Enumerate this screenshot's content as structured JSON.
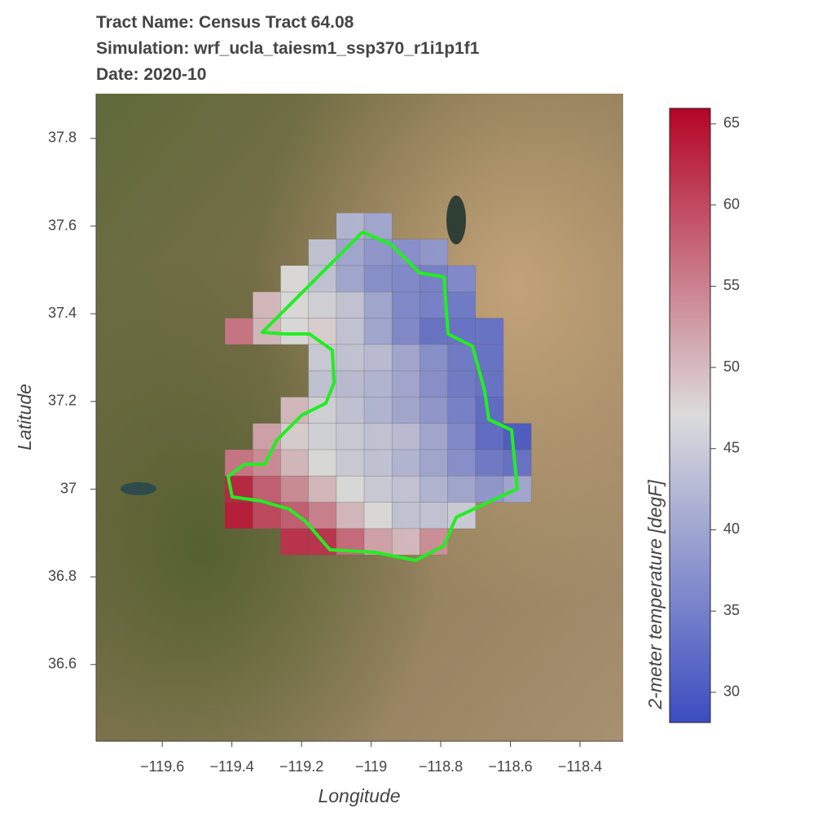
{
  "chart_data": {
    "type": "heatmap",
    "title": [
      "Tract Name: Census Tract 64.08",
      "Simulation: wrf_ucla_taiesm1_ssp370_r1i1p1f1",
      "Date: 2020-10"
    ],
    "x_label": "Longitude",
    "y_label": "Latitude",
    "colorbar_label": "2-meter temperature [degF]",
    "xlim": [
      -119.79,
      -118.276
    ],
    "ylim": [
      36.425,
      37.902
    ],
    "clim": [
      28.14,
      65.95
    ],
    "xticks": [
      {
        "value": -119.6,
        "label": "−119.6"
      },
      {
        "value": -119.4,
        "label": "−119.4"
      },
      {
        "value": -119.2,
        "label": "−119.2"
      },
      {
        "value": -119,
        "label": "−119"
      },
      {
        "value": -118.8,
        "label": "−118.8"
      },
      {
        "value": -118.6,
        "label": "−118.6"
      },
      {
        "value": -118.4,
        "label": "−118.4"
      }
    ],
    "yticks": [
      36.6,
      36.8,
      37,
      37.2,
      37.4,
      37.6,
      37.8
    ],
    "cticks": [
      30,
      35,
      40,
      45,
      50,
      55,
      60,
      65
    ],
    "colormap": [
      "#3b4cc0",
      "#dcdcdc",
      "#b40426"
    ],
    "boundary_color": "#22ee22",
    "x": [
      -119.38,
      -119.3,
      -119.22,
      -119.14,
      -119.06,
      -118.98,
      -118.9,
      -118.82,
      -118.74,
      -118.66,
      -118.58
    ],
    "y": [
      37.6,
      37.54,
      37.48,
      37.42,
      37.36,
      37.3,
      37.24,
      37.18,
      37.12,
      37.06,
      37.0,
      36.94,
      36.88
    ],
    "z": [
      [
        null,
        null,
        null,
        null,
        42,
        40,
        null,
        null,
        null,
        null,
        null
      ],
      [
        null,
        null,
        null,
        44,
        40,
        38,
        37,
        38,
        null,
        null,
        null
      ],
      [
        null,
        null,
        47,
        44,
        40,
        37,
        36,
        35,
        36,
        null,
        null
      ],
      [
        null,
        50,
        47,
        46,
        44,
        40,
        36,
        35,
        34,
        null,
        null
      ],
      [
        56,
        50,
        47,
        48,
        44,
        40,
        36,
        33,
        33,
        33,
        null
      ],
      [
        null,
        null,
        null,
        45,
        44,
        43,
        40,
        37,
        34,
        33,
        null
      ],
      [
        null,
        null,
        null,
        44,
        43,
        42,
        40,
        37,
        34,
        33,
        null
      ],
      [
        null,
        null,
        50,
        46,
        44,
        42,
        40,
        38,
        35,
        32,
        null
      ],
      [
        null,
        52,
        48,
        46,
        45,
        44,
        43,
        40,
        36,
        32,
        30
      ],
      [
        56,
        54,
        50,
        47,
        45,
        44,
        42,
        40,
        37,
        34,
        33
      ],
      [
        63,
        58,
        54,
        50,
        47,
        45,
        44,
        42,
        40,
        38,
        40
      ],
      [
        64,
        60,
        58,
        55,
        50,
        47,
        44,
        44,
        45,
        null,
        null
      ],
      [
        null,
        null,
        62,
        62,
        57,
        52,
        50,
        54,
        null,
        null,
        null
      ]
    ]
  }
}
